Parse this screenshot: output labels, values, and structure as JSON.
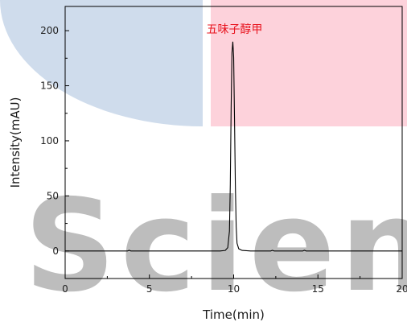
{
  "chart_data": {
    "type": "line",
    "xlabel": "Time(min)",
    "ylabel": "Intensity(mAU)",
    "xlim": [
      0,
      20
    ],
    "ylim": [
      -25,
      222
    ],
    "x_ticks": [
      0,
      5,
      10,
      15,
      20
    ],
    "x_tick_labels": [
      "0",
      "5",
      "10",
      "15",
      "20"
    ],
    "y_ticks": [
      0,
      50,
      100,
      150,
      200
    ],
    "y_tick_labels": [
      "0",
      "50",
      "100",
      "150",
      "200"
    ],
    "grid": false,
    "legend": "none",
    "series": [
      {
        "x": [
          0,
          3.7,
          3.8,
          3.9,
          5.5,
          9.2,
          9.5,
          9.65,
          9.75,
          9.8,
          9.85,
          9.9,
          9.95,
          10.0,
          10.05,
          10.1,
          10.15,
          10.2,
          10.3,
          10.5,
          11.0,
          12.2,
          12.3,
          12.4,
          14.1,
          14.2,
          14.3,
          20
        ],
        "y": [
          0,
          0,
          0.6,
          0,
          0,
          0,
          0.5,
          3,
          18,
          60,
          130,
          180,
          190,
          176,
          120,
          60,
          22,
          7,
          2,
          0.5,
          0,
          0,
          0.6,
          0,
          0,
          0.6,
          0,
          0
        ],
        "color": "#000000"
      }
    ],
    "annotations": [
      {
        "text": "五味子醇甲",
        "x": 10.05,
        "y": 198,
        "color": "#e8131d"
      }
    ]
  },
  "watermark": {
    "text": "Scienc",
    "colors": {
      "blue_block": "#cfdcec",
      "pink_block": "#fdd2db",
      "letters": "#3a3a3a"
    }
  }
}
